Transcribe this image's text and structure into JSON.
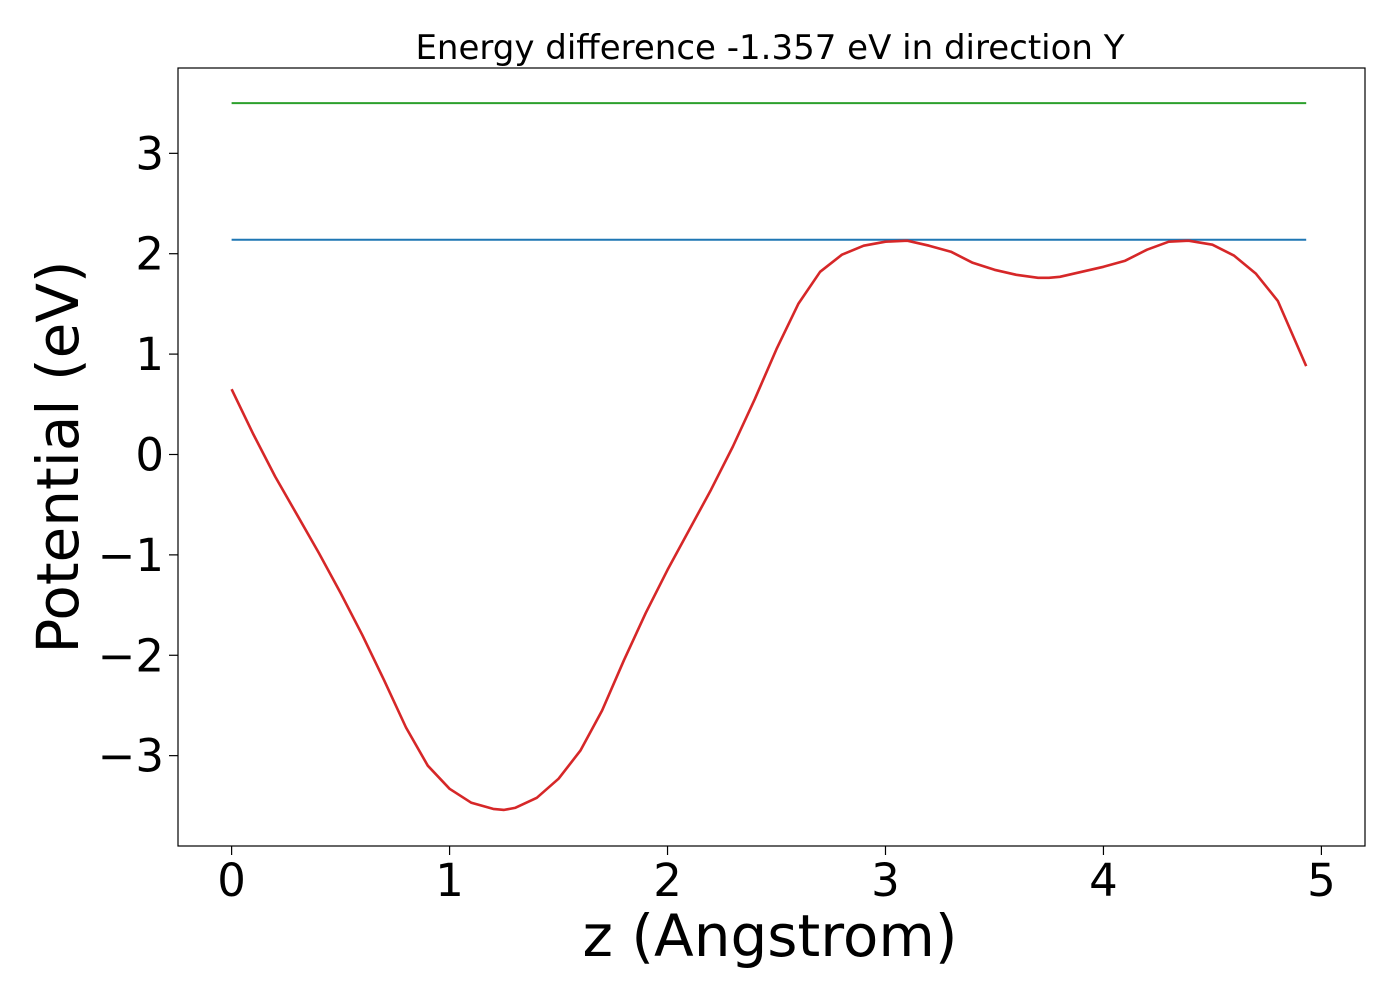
{
  "chart_data": {
    "type": "line",
    "title": "Energy difference -1.357 eV in direction Y",
    "xlabel": "z (Angstrom)",
    "ylabel": "Potential (eV)",
    "xlim": [
      -0.246,
      5.2
    ],
    "ylim": [
      -3.9,
      3.85
    ],
    "xticks": [
      0,
      1,
      2,
      3,
      4,
      5
    ],
    "xtick_labels": [
      "0",
      "1",
      "2",
      "3",
      "4",
      "5"
    ],
    "yticks": [
      -3,
      -2,
      -1,
      0,
      1,
      2,
      3
    ],
    "ytick_labels": [
      "−3",
      "−2",
      "−1",
      "0",
      "1",
      "2",
      "3"
    ],
    "grid": false,
    "series": [
      {
        "color": "#2ca02c",
        "x": [
          0,
          4.93
        ],
        "y": [
          3.5,
          3.5
        ]
      },
      {
        "color": "#1f77b4",
        "x": [
          0,
          4.93
        ],
        "y": [
          2.14,
          2.14
        ]
      },
      {
        "color": "#d62728",
        "x": [
          0,
          0.1,
          0.2,
          0.3,
          0.4,
          0.5,
          0.6,
          0.7,
          0.8,
          0.9,
          1.0,
          1.1,
          1.2,
          1.25,
          1.3,
          1.4,
          1.5,
          1.6,
          1.7,
          1.8,
          1.9,
          2.0,
          2.1,
          2.2,
          2.3,
          2.4,
          2.5,
          2.6,
          2.7,
          2.8,
          2.9,
          3.0,
          3.1,
          3.2,
          3.3,
          3.4,
          3.5,
          3.6,
          3.7,
          3.75,
          3.8,
          3.9,
          4.0,
          4.1,
          4.2,
          4.3,
          4.39,
          4.5,
          4.6,
          4.7,
          4.8,
          4.93
        ],
        "y": [
          0.65,
          0.2,
          -0.22,
          -0.6,
          -0.98,
          -1.38,
          -1.8,
          -2.25,
          -2.72,
          -3.1,
          -3.33,
          -3.47,
          -3.53,
          -3.54,
          -3.52,
          -3.42,
          -3.23,
          -2.95,
          -2.55,
          -2.05,
          -1.58,
          -1.15,
          -0.75,
          -0.35,
          0.08,
          0.55,
          1.05,
          1.5,
          1.82,
          1.99,
          2.08,
          2.12,
          2.13,
          2.08,
          2.02,
          1.91,
          1.84,
          1.79,
          1.76,
          1.76,
          1.77,
          1.82,
          1.87,
          1.93,
          2.04,
          2.12,
          2.13,
          2.09,
          1.98,
          1.8,
          1.53,
          0.88
        ]
      }
    ]
  }
}
